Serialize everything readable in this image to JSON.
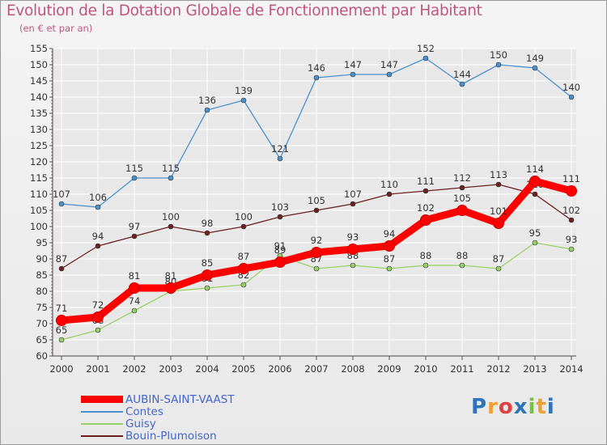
{
  "title": "Evolution de la Dotation Globale de Fonctionnement par Habitant",
  "subtitle": "(en € et par an)",
  "logo": "Proxiti",
  "colors": {
    "title": "#c0567e",
    "grid": "#ffffff",
    "axis": "#333333",
    "label": "#4466cc"
  },
  "chart_data": {
    "type": "line",
    "title": "Evolution de la Dotation Globale de Fonctionnement par Habitant",
    "subtitle": "(en € et par an)",
    "xlabel": "",
    "ylabel": "",
    "ylim": [
      60,
      155
    ],
    "ytick_step": 5,
    "x": [
      2000,
      2001,
      2002,
      2003,
      2004,
      2005,
      2006,
      2007,
      2008,
      2009,
      2010,
      2011,
      2012,
      2013,
      2014
    ],
    "legend_position": "bottom-left",
    "series": [
      {
        "name": "AUBIN-SAINT-VAAST",
        "color": "#ff0000",
        "values": [
          71,
          72,
          81,
          81,
          85,
          87,
          89,
          92,
          93,
          94,
          102,
          105,
          101,
          114,
          111
        ],
        "labels": [
          "71",
          "72",
          "81",
          "81",
          "85",
          "87",
          "89",
          "92",
          "93",
          "94",
          "102",
          "105",
          "101",
          "114",
          "111"
        ]
      },
      {
        "name": "Contes",
        "color": "#4a90d0",
        "values": [
          107,
          106,
          115,
          115,
          136,
          139,
          121,
          146,
          147,
          147,
          152,
          144,
          150,
          149,
          140
        ],
        "labels": [
          "107",
          "106",
          "115",
          "115",
          "136",
          "139",
          "121",
          "146",
          "147",
          "147",
          "152",
          "144",
          "150",
          "149",
          "140"
        ]
      },
      {
        "name": "Guisy",
        "color": "#99d066",
        "values": [
          65,
          68,
          74,
          80,
          81,
          82,
          91,
          87,
          88,
          87,
          88,
          88,
          87,
          95,
          93
        ],
        "labels": [
          "65",
          "68",
          "74",
          "80",
          "81",
          "82",
          "91",
          "87",
          "88",
          "87",
          "88",
          "88",
          "87",
          "95",
          "93"
        ]
      },
      {
        "name": "Bouin-Plumoison",
        "color": "#6b1f1f",
        "values": [
          87,
          94,
          97,
          100,
          98,
          100,
          103,
          105,
          107,
          110,
          111,
          112,
          113,
          110,
          102
        ],
        "labels": [
          "87",
          "94",
          "97",
          "100",
          "98",
          "100",
          "103",
          "105",
          "107",
          "110",
          "111",
          "112",
          "113",
          "110",
          "102"
        ]
      }
    ]
  }
}
